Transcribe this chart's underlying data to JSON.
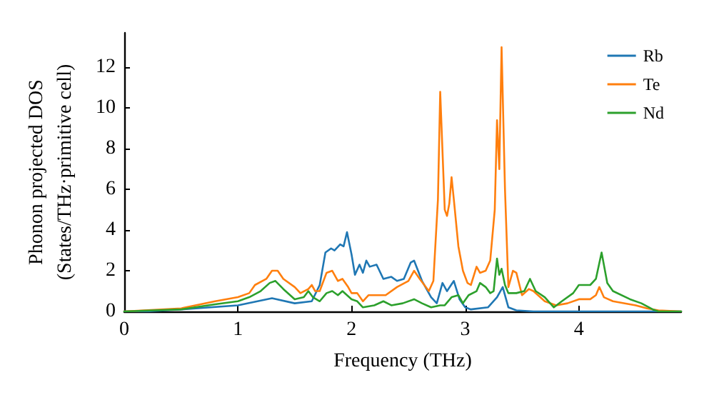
{
  "chart_data": {
    "type": "line",
    "xlabel": "Frequency (THz)",
    "ylabel": "Phonon projected DOS\n(States/THz·primitive cell)",
    "xlim": [
      0,
      4.9
    ],
    "ylim": [
      0,
      13.7
    ],
    "xticks": [
      0,
      1,
      2,
      3,
      4
    ],
    "yticks": [
      0,
      2,
      4,
      6,
      8,
      10,
      12
    ],
    "grid": false,
    "legend": "top right",
    "marker": "none",
    "line_style": "solid",
    "series": [
      {
        "name": "Rb",
        "color": "#1f77b4",
        "x": [
          0,
          0.2,
          0.5,
          1.0,
          1.3,
          1.5,
          1.65,
          1.72,
          1.77,
          1.82,
          1.85,
          1.9,
          1.93,
          1.96,
          2.0,
          2.03,
          2.07,
          2.1,
          2.13,
          2.16,
          2.22,
          2.28,
          2.35,
          2.4,
          2.46,
          2.52,
          2.55,
          2.62,
          2.7,
          2.75,
          2.8,
          2.84,
          2.9,
          2.95,
          3.0,
          3.05,
          3.2,
          3.28,
          3.33,
          3.38,
          3.45,
          3.6,
          4.7,
          4.9
        ],
        "values": [
          0,
          0,
          0.1,
          0.3,
          0.65,
          0.4,
          0.5,
          1.3,
          2.9,
          3.1,
          3.0,
          3.3,
          3.2,
          3.9,
          2.8,
          1.8,
          2.3,
          1.9,
          2.5,
          2.2,
          2.3,
          1.6,
          1.7,
          1.5,
          1.6,
          2.4,
          2.5,
          1.5,
          0.7,
          0.4,
          1.4,
          1.0,
          1.5,
          0.6,
          0.2,
          0.1,
          0.2,
          0.7,
          1.2,
          0.2,
          0.05,
          0,
          0,
          0
        ]
      },
      {
        "name": "Te",
        "color": "#ff7f0e",
        "x": [
          0,
          0.5,
          0.8,
          1.0,
          1.1,
          1.15,
          1.25,
          1.3,
          1.35,
          1.4,
          1.5,
          1.55,
          1.62,
          1.65,
          1.68,
          1.72,
          1.78,
          1.83,
          1.88,
          1.92,
          1.97,
          2.0,
          2.05,
          2.1,
          2.15,
          2.3,
          2.4,
          2.5,
          2.55,
          2.6,
          2.68,
          2.72,
          2.76,
          2.78,
          2.82,
          2.84,
          2.86,
          2.88,
          2.9,
          2.94,
          2.98,
          3.02,
          3.05,
          3.1,
          3.13,
          3.18,
          3.22,
          3.26,
          3.28,
          3.3,
          3.32,
          3.35,
          3.38,
          3.42,
          3.45,
          3.5,
          3.56,
          3.6,
          3.7,
          3.8,
          3.9,
          4.0,
          4.1,
          4.15,
          4.18,
          4.22,
          4.3,
          4.5,
          4.6,
          4.7,
          4.9
        ],
        "values": [
          0,
          0.15,
          0.5,
          0.7,
          0.9,
          1.3,
          1.6,
          2.0,
          2.0,
          1.6,
          1.2,
          0.9,
          1.1,
          1.3,
          1.0,
          1.0,
          1.9,
          2.0,
          1.5,
          1.6,
          1.2,
          0.9,
          0.9,
          0.5,
          0.8,
          0.8,
          1.2,
          1.5,
          2.0,
          1.6,
          1.0,
          1.5,
          5.5,
          10.8,
          5.0,
          4.7,
          5.3,
          6.6,
          5.5,
          3.2,
          2.0,
          1.4,
          1.3,
          2.2,
          1.9,
          2.0,
          2.5,
          5.0,
          9.4,
          7.0,
          13.0,
          6.0,
          1.2,
          2.0,
          1.9,
          0.8,
          1.1,
          1.0,
          0.5,
          0.3,
          0.4,
          0.6,
          0.6,
          0.8,
          1.2,
          0.7,
          0.5,
          0.3,
          0.15,
          0.05,
          0
        ]
      },
      {
        "name": "Nd",
        "color": "#2ca02c",
        "x": [
          0,
          0.5,
          0.8,
          1.0,
          1.1,
          1.2,
          1.28,
          1.33,
          1.4,
          1.5,
          1.58,
          1.62,
          1.66,
          1.72,
          1.78,
          1.83,
          1.88,
          1.92,
          1.96,
          2.0,
          2.05,
          2.1,
          2.2,
          2.28,
          2.35,
          2.45,
          2.55,
          2.62,
          2.7,
          2.78,
          2.82,
          2.88,
          2.94,
          2.98,
          3.03,
          3.1,
          3.13,
          3.18,
          3.22,
          3.25,
          3.28,
          3.3,
          3.32,
          3.35,
          3.38,
          3.45,
          3.52,
          3.57,
          3.62,
          3.7,
          3.78,
          3.85,
          3.95,
          4.0,
          4.1,
          4.15,
          4.2,
          4.25,
          4.3,
          4.45,
          4.55,
          4.65,
          4.7,
          4.9
        ],
        "values": [
          0,
          0.1,
          0.35,
          0.5,
          0.7,
          1.0,
          1.4,
          1.5,
          1.1,
          0.6,
          0.7,
          1.0,
          0.7,
          0.5,
          0.9,
          1.0,
          0.8,
          1.0,
          0.8,
          0.6,
          0.5,
          0.2,
          0.3,
          0.5,
          0.3,
          0.4,
          0.6,
          0.4,
          0.2,
          0.3,
          0.3,
          0.7,
          0.8,
          0.4,
          0.8,
          1.0,
          1.4,
          1.2,
          0.9,
          1.0,
          2.6,
          1.8,
          2.1,
          1.3,
          0.9,
          0.9,
          1.0,
          1.6,
          1.0,
          0.7,
          0.2,
          0.5,
          0.9,
          1.3,
          1.3,
          1.6,
          2.9,
          1.4,
          1.0,
          0.6,
          0.4,
          0.1,
          0,
          0
        ]
      }
    ]
  }
}
